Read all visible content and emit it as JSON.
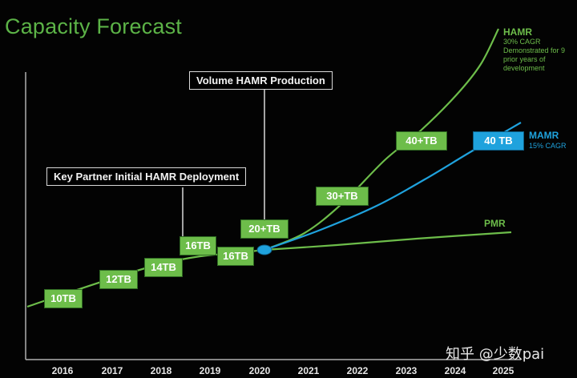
{
  "chart_data": {
    "type": "line",
    "title": "Capacity Forecast",
    "categories": [
      "2016",
      "2017",
      "2018",
      "2019",
      "2020",
      "2021",
      "2022",
      "2023",
      "2024",
      "2025"
    ],
    "series": [
      {
        "name": "HAMR",
        "color": "#6dbd4a",
        "note": "30% CAGR Demonstrated for 9 prior years of development"
      },
      {
        "name": "MAMR",
        "color": "#1fa2dd",
        "note": "15% CAGR"
      },
      {
        "name": "PMR",
        "color": "#6dbd4a"
      }
    ],
    "capacity_labels": [
      {
        "text": "10TB",
        "year": 2016.3,
        "series": "HAMR"
      },
      {
        "text": "12TB",
        "year": 2017.2,
        "series": "HAMR"
      },
      {
        "text": "14TB",
        "year": 2017.9,
        "series": "HAMR"
      },
      {
        "text": "16TB",
        "year": 2018.7,
        "series": "HAMR"
      },
      {
        "text": "16TB",
        "year": 2019.5,
        "series": "HAMR"
      },
      {
        "text": "20+TB",
        "year": 2020.0,
        "series": "HAMR"
      },
      {
        "text": "30+TB",
        "year": 2021.5,
        "series": "HAMR"
      },
      {
        "text": "40+TB",
        "year": 2022.7,
        "series": "HAMR"
      },
      {
        "text": "40 TB",
        "year": 2023.8,
        "series": "MAMR"
      }
    ],
    "annotations": [
      "Key Partner Initial HAMR Deployment",
      "Volume HAMR Production"
    ],
    "grid": false
  },
  "watermark": "知乎 @少数pai"
}
